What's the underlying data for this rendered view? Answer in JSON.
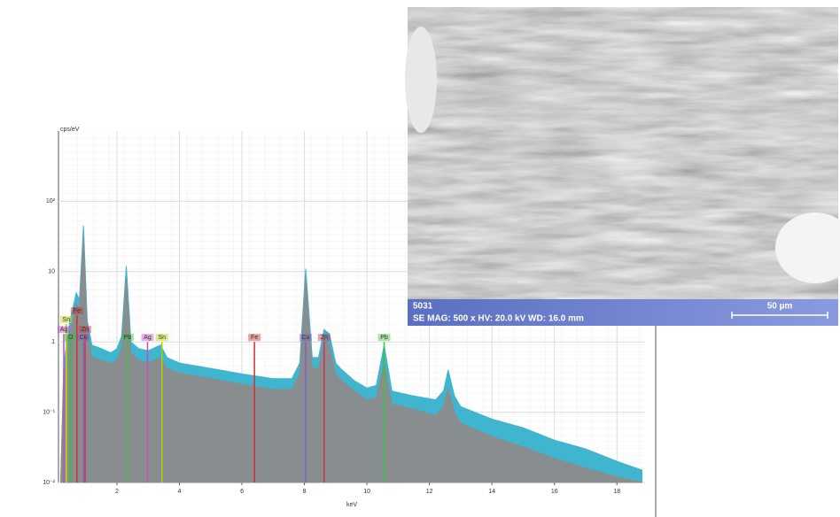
{
  "chart_data": {
    "type": "area",
    "y_label": "cps/eV",
    "x_label": "keV",
    "log_y": true,
    "grid": true,
    "xlim": [
      0.13,
      18.9
    ],
    "xticks": [
      2,
      4,
      6,
      8,
      10,
      12,
      14,
      16,
      18
    ],
    "ylim": [
      0.01,
      1000
    ],
    "yticks": [
      {
        "value": 0.01,
        "label": "10⁻²"
      },
      {
        "value": 0.1,
        "label": "10⁻¹"
      },
      1,
      10,
      {
        "value": 100,
        "label": "10²"
      }
    ],
    "x": [
      0.2,
      0.3,
      0.5,
      0.7,
      0.8,
      0.93,
      1.05,
      1.2,
      1.5,
      1.8,
      2.0,
      2.15,
      2.3,
      2.45,
      2.7,
      3.0,
      3.4,
      3.6,
      4,
      5,
      6,
      7,
      7.6,
      7.85,
      8.04,
      8.25,
      8.45,
      8.63,
      8.8,
      9.0,
      9.2,
      9.6,
      10,
      10.3,
      10.55,
      10.8,
      11.5,
      12.2,
      12.45,
      12.6,
      12.8,
      13,
      14,
      15,
      16,
      17,
      18,
      18.8
    ],
    "series": [
      {
        "color": "#3fb5cf",
        "values": [
          0.01,
          0.5,
          2,
          5,
          4,
          45,
          2,
          0.9,
          0.8,
          0.7,
          0.8,
          1.2,
          12,
          1.0,
          0.8,
          0.75,
          0.9,
          0.6,
          0.5,
          0.42,
          0.35,
          0.3,
          0.3,
          0.5,
          11,
          0.6,
          0.6,
          1.5,
          1.3,
          0.5,
          0.4,
          0.28,
          0.22,
          0.24,
          0.9,
          0.2,
          0.17,
          0.15,
          0.2,
          0.4,
          0.17,
          0.12,
          0.08,
          0.06,
          0.04,
          0.03,
          0.02,
          0.015
        ]
      },
      {
        "color": "#8c8c8c",
        "values": [
          0.01,
          0.3,
          1.4,
          3.5,
          3,
          30,
          1.4,
          0.6,
          0.55,
          0.5,
          0.55,
          0.8,
          8,
          0.7,
          0.55,
          0.5,
          0.6,
          0.42,
          0.36,
          0.3,
          0.25,
          0.21,
          0.21,
          0.35,
          8,
          0.42,
          0.42,
          1.1,
          0.9,
          0.35,
          0.28,
          0.2,
          0.15,
          0.16,
          0.5,
          0.13,
          0.11,
          0.09,
          0.12,
          0.22,
          0.1,
          0.07,
          0.045,
          0.032,
          0.022,
          0.016,
          0.012,
          0.01
        ]
      }
    ],
    "markers": [
      {
        "label": "Sn",
        "x": 0.38,
        "value": 1.8,
        "color": "#c8d400"
      },
      {
        "label": "Ag",
        "x": 0.3,
        "value": 1.3,
        "color": "#c050c0"
      },
      {
        "label": "O",
        "x": 0.52,
        "value": 1,
        "color": "#30c030"
      },
      {
        "label": "Fe",
        "x": 0.72,
        "value": 2.4,
        "color": "#d03030"
      },
      {
        "label": "Zn",
        "x": 0.98,
        "value": 1.3,
        "color": "#d03050"
      },
      {
        "label": "Cu",
        "x": 0.93,
        "value": 1,
        "color": "#8060c0"
      },
      {
        "label": "Pb",
        "x": 2.34,
        "value": 1,
        "color": "#40c040"
      },
      {
        "label": "Ag",
        "x": 2.98,
        "value": 1,
        "color": "#c050c0"
      },
      {
        "label": "Sn",
        "x": 3.44,
        "value": 1,
        "color": "#b0d000"
      },
      {
        "label": "Fe",
        "x": 6.4,
        "value": 1,
        "color": "#d03030"
      },
      {
        "label": "Cu",
        "x": 8.04,
        "value": 1,
        "color": "#8060c0"
      },
      {
        "label": "Zn",
        "x": 8.63,
        "value": 1,
        "color": "#d03050"
      },
      {
        "label": "Pb",
        "x": 10.55,
        "value": 1,
        "color": "#40c040"
      }
    ]
  },
  "image_caption": {
    "sample": "5031",
    "details": "SE  MAG: 500 x  HV: 20.0 kV  WD: 16.0 mm",
    "scale": "50 µm"
  }
}
